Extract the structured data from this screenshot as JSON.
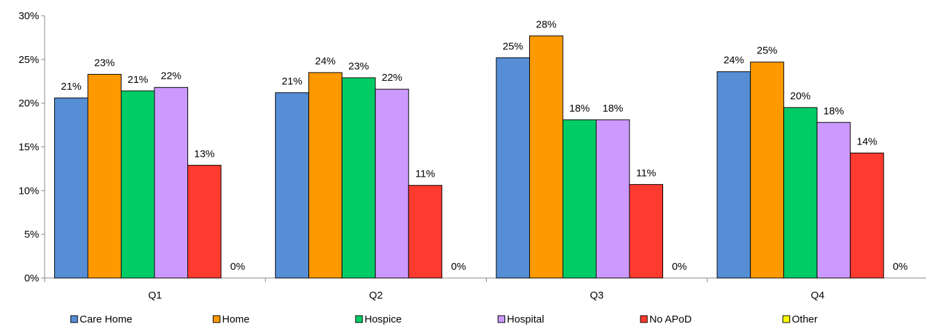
{
  "chart_data": {
    "type": "bar",
    "title": "",
    "xlabel": "",
    "ylabel": "",
    "categories": [
      "Q1",
      "Q2",
      "Q3",
      "Q4"
    ],
    "y_ticks": [
      "0%",
      "5%",
      "10%",
      "15%",
      "20%",
      "25%",
      "30%"
    ],
    "ylim": [
      0,
      30
    ],
    "grid": false,
    "legend_position": "bottom",
    "series": [
      {
        "name": "Care Home",
        "color": "#558ED5",
        "values": [
          20.6,
          21.2,
          25.2,
          23.6
        ],
        "labels": [
          "21%",
          "21%",
          "25%",
          "24%"
        ]
      },
      {
        "name": "Home",
        "color": "#FF9900",
        "values": [
          23.3,
          23.5,
          27.7,
          24.7
        ],
        "labels": [
          "23%",
          "24%",
          "28%",
          "25%"
        ]
      },
      {
        "name": "Hospice",
        "color": "#00CC66",
        "values": [
          21.4,
          22.9,
          18.1,
          19.5
        ],
        "labels": [
          "21%",
          "23%",
          "18%",
          "20%"
        ]
      },
      {
        "name": "Hospital",
        "color": "#CC99FF",
        "values": [
          21.8,
          21.6,
          18.1,
          17.8
        ],
        "labels": [
          "22%",
          "22%",
          "18%",
          "18%"
        ]
      },
      {
        "name": "No APoD",
        "color": "#FF3B2F",
        "values": [
          12.9,
          10.6,
          10.7,
          14.3
        ],
        "labels": [
          "13%",
          "11%",
          "11%",
          "14%"
        ]
      },
      {
        "name": "Other",
        "color": "#FFFF00",
        "values": [
          0,
          0,
          0,
          0
        ],
        "labels": [
          "0%",
          "0%",
          "0%",
          "0%"
        ]
      }
    ]
  }
}
